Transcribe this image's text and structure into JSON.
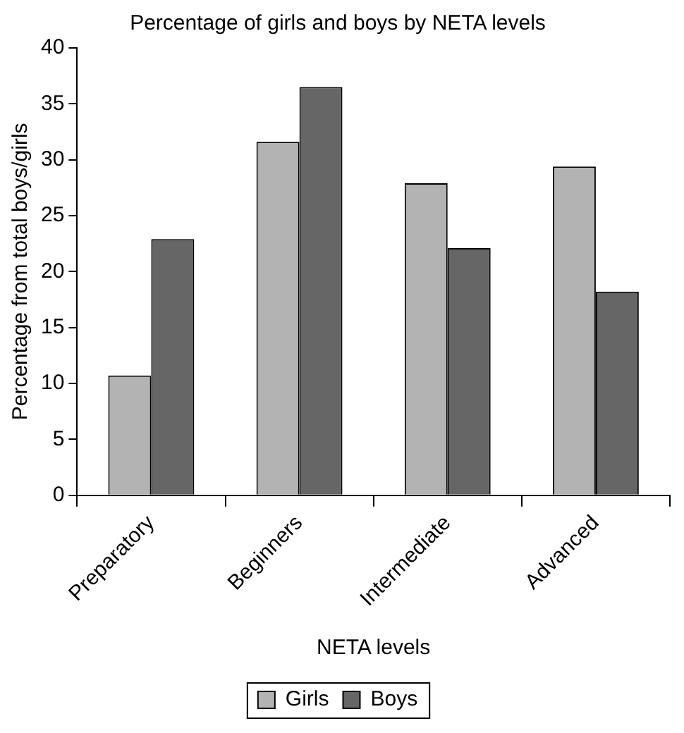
{
  "chart_data": {
    "type": "bar",
    "title": "Percentage of girls and boys by NETA levels",
    "xlabel": "NETA levels",
    "ylabel": "Percentage from total boys/girls",
    "categories": [
      "Preparatory",
      "Beginners",
      "Intermediate",
      "Advanced"
    ],
    "series": [
      {
        "name": "Girls",
        "color": "#b3b3b3",
        "values": [
          10.7,
          31.6,
          27.9,
          29.4
        ]
      },
      {
        "name": "Boys",
        "color": "#666666",
        "values": [
          22.9,
          36.5,
          22.1,
          18.2
        ]
      }
    ],
    "ylim": [
      0,
      40
    ],
    "yticks": [
      0,
      5,
      10,
      15,
      20,
      25,
      30,
      35,
      40
    ],
    "grid": false,
    "legend": "bottom"
  }
}
